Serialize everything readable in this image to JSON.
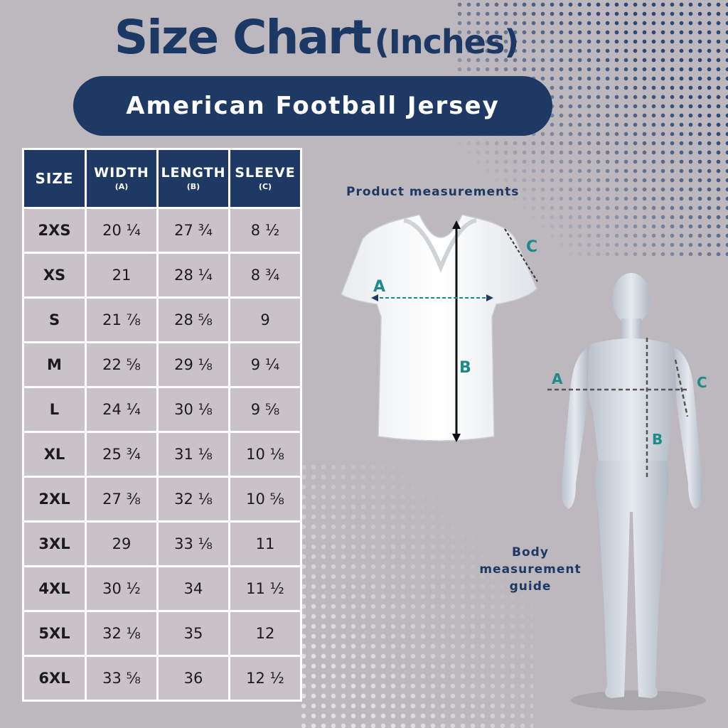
{
  "title": {
    "main": "Size Chart",
    "sub": "(Inches)"
  },
  "banner": "American Football Jersey",
  "table": {
    "headers": [
      {
        "label": "SIZE",
        "unit": ""
      },
      {
        "label": "WIDTH",
        "unit": "(A)"
      },
      {
        "label": "LENGTH",
        "unit": "(B)"
      },
      {
        "label": "SLEEVE",
        "unit": "(C)"
      }
    ],
    "rows": [
      [
        "2XS",
        "20 ¼",
        "27 ¾",
        "8 ½"
      ],
      [
        "XS",
        "21",
        "28 ¼",
        "8 ¾"
      ],
      [
        "S",
        "21 ⅞",
        "28 ⅝",
        "9"
      ],
      [
        "M",
        "22 ⅝",
        "29 ⅛",
        "9 ¼"
      ],
      [
        "L",
        "24 ¼",
        "30 ⅛",
        "9 ⅝"
      ],
      [
        "XL",
        "25 ¾",
        "31 ⅛",
        "10 ⅛"
      ],
      [
        "2XL",
        "27 ⅜",
        "32 ⅛",
        "10 ⅝"
      ],
      [
        "3XL",
        "29",
        "33 ⅛",
        "11"
      ],
      [
        "4XL",
        "30 ½",
        "34",
        "11 ½"
      ],
      [
        "5XL",
        "32 ⅛",
        "35",
        "12"
      ],
      [
        "6XL",
        "33 ⅝",
        "36",
        "12 ½"
      ]
    ]
  },
  "product_label": "Product measurements",
  "body_label": [
    "Body",
    "measurement",
    "guide"
  ],
  "markers": {
    "a": "A",
    "b": "B",
    "c": "C"
  },
  "colors": {
    "navy": "#1e3a64",
    "teal": "#1e8a8c",
    "background": "#bdb8bd"
  }
}
